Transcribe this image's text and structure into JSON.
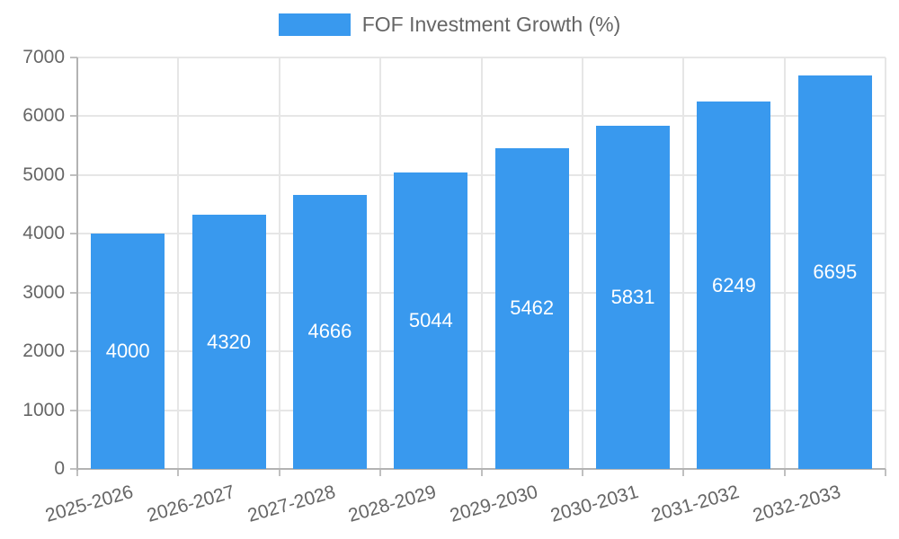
{
  "chart_data": {
    "type": "bar",
    "title": "FOF Investment Growth (%)",
    "legend": {
      "label": "FOF Investment Growth (%)",
      "position": "top"
    },
    "categories": [
      "2025-2026",
      "2026-2027",
      "2027-2028",
      "2028-2029",
      "2029-2030",
      "2030-2031",
      "2031-2032",
      "2032-2033"
    ],
    "values": [
      4000,
      4320,
      4666,
      5044,
      5462,
      5831,
      6249,
      6695
    ],
    "value_labels": [
      "4000",
      "4320",
      "4666",
      "5044",
      "5462",
      "5831",
      "6249",
      "6695"
    ],
    "yticks": [
      "0",
      "1000",
      "2000",
      "3000",
      "4000",
      "5000",
      "6000",
      "7000"
    ],
    "ylim": [
      0,
      7000
    ],
    "ytick_step": 1000,
    "grid": true,
    "x_label_rotation_deg": -16,
    "colors": {
      "bar": "#3999ee",
      "bar_value_text": "#ffffff",
      "axis_text": "#666666",
      "legend_text": "#666666",
      "gridline": "#e6e6e6",
      "axis_line": "#b3b3b3",
      "tick_mark": "#c0c0c0",
      "background": "#ffffff"
    }
  }
}
